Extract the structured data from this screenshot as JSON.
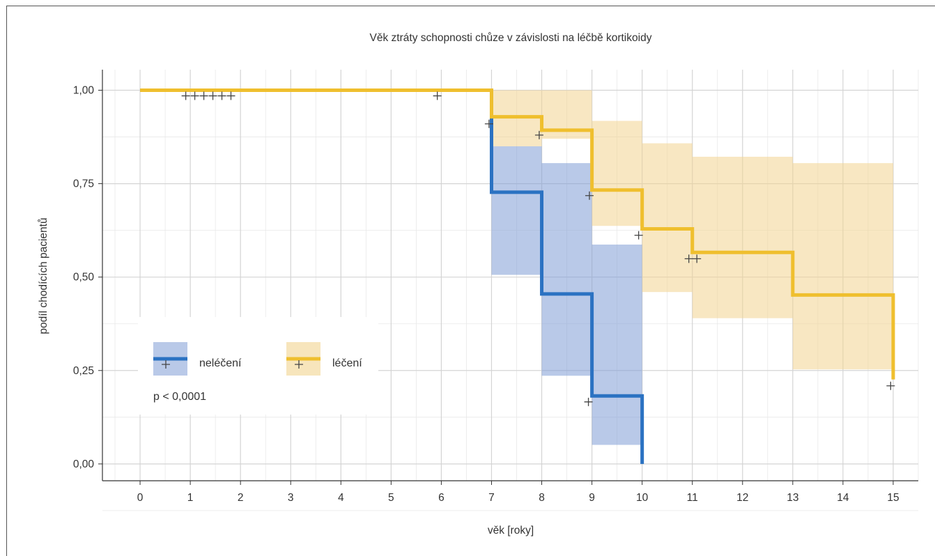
{
  "chart_data": {
    "type": "line",
    "title": "Věk ztráty schopnosti chůze v závislosti na léčbě kortikoidy",
    "xlabel": "věk [roky]",
    "ylabel": "podíl chodících pacientů",
    "xlim": [
      -0.75,
      15.5
    ],
    "ylim": [
      -0.045,
      1.055
    ],
    "x_ticks": [
      0,
      1,
      2,
      3,
      4,
      5,
      6,
      7,
      8,
      9,
      10,
      11,
      12,
      13,
      14,
      15
    ],
    "x_tick_labels": [
      "0",
      "1",
      "2",
      "3",
      "4",
      "5",
      "6",
      "7",
      "8",
      "9",
      "10",
      "11",
      "12",
      "13",
      "14",
      "15"
    ],
    "y_ticks": [
      0,
      0.25,
      0.5,
      0.75,
      1.0
    ],
    "y_tick_labels": [
      "0,00",
      "0,25",
      "0,50",
      "0,75",
      "1,00"
    ],
    "grid": true,
    "legend_position": "bottom-left",
    "annotation": "p < 0,0001",
    "series": [
      {
        "name": "neléčení",
        "color": "#2b72c2",
        "band_color": "#7f9cd6",
        "steps": [
          [
            0,
            1.0
          ],
          [
            7,
            0.727
          ],
          [
            8,
            0.455
          ],
          [
            9,
            0.182
          ],
          [
            10,
            0.0
          ]
        ],
        "end_x": 10,
        "ci": [
          [
            7,
            8,
            0.506,
            0.85
          ],
          [
            8,
            9,
            0.236,
            0.805
          ],
          [
            9,
            10,
            0.051,
            0.587
          ]
        ],
        "censor": [
          [
            0.91,
            0.985
          ],
          [
            1.09,
            0.985
          ],
          [
            1.27,
            0.985
          ],
          [
            1.45,
            0.985
          ],
          [
            1.63,
            0.985
          ],
          [
            1.81,
            0.985
          ],
          [
            5.92,
            0.985
          ],
          [
            6.95,
            0.91
          ]
        ]
      },
      {
        "name": "léčení",
        "color": "#efbf2e",
        "band_color": "#f2d48f",
        "steps": [
          [
            0,
            1.0
          ],
          [
            7,
            0.929
          ],
          [
            8,
            0.893
          ],
          [
            9,
            0.733
          ],
          [
            10,
            0.629
          ],
          [
            11,
            0.566
          ],
          [
            13,
            0.452
          ],
          [
            15,
            0.226
          ]
        ],
        "end_x": 15,
        "ci": [
          [
            7,
            8,
            0.85,
            1.0
          ],
          [
            8,
            9,
            0.87,
            1.0
          ],
          [
            9,
            10,
            0.637,
            0.918
          ],
          [
            10,
            11,
            0.46,
            0.858
          ],
          [
            11,
            13,
            0.39,
            0.822
          ],
          [
            13,
            15,
            0.253,
            0.805
          ]
        ],
        "censor": [
          [
            7.95,
            0.88
          ],
          [
            8.95,
            0.718
          ],
          [
            9.93,
            0.612
          ],
          [
            10.93,
            0.549
          ],
          [
            11.09,
            0.549
          ],
          [
            14.95,
            0.209
          ],
          [
            8.93,
            0.166
          ]
        ]
      }
    ]
  }
}
